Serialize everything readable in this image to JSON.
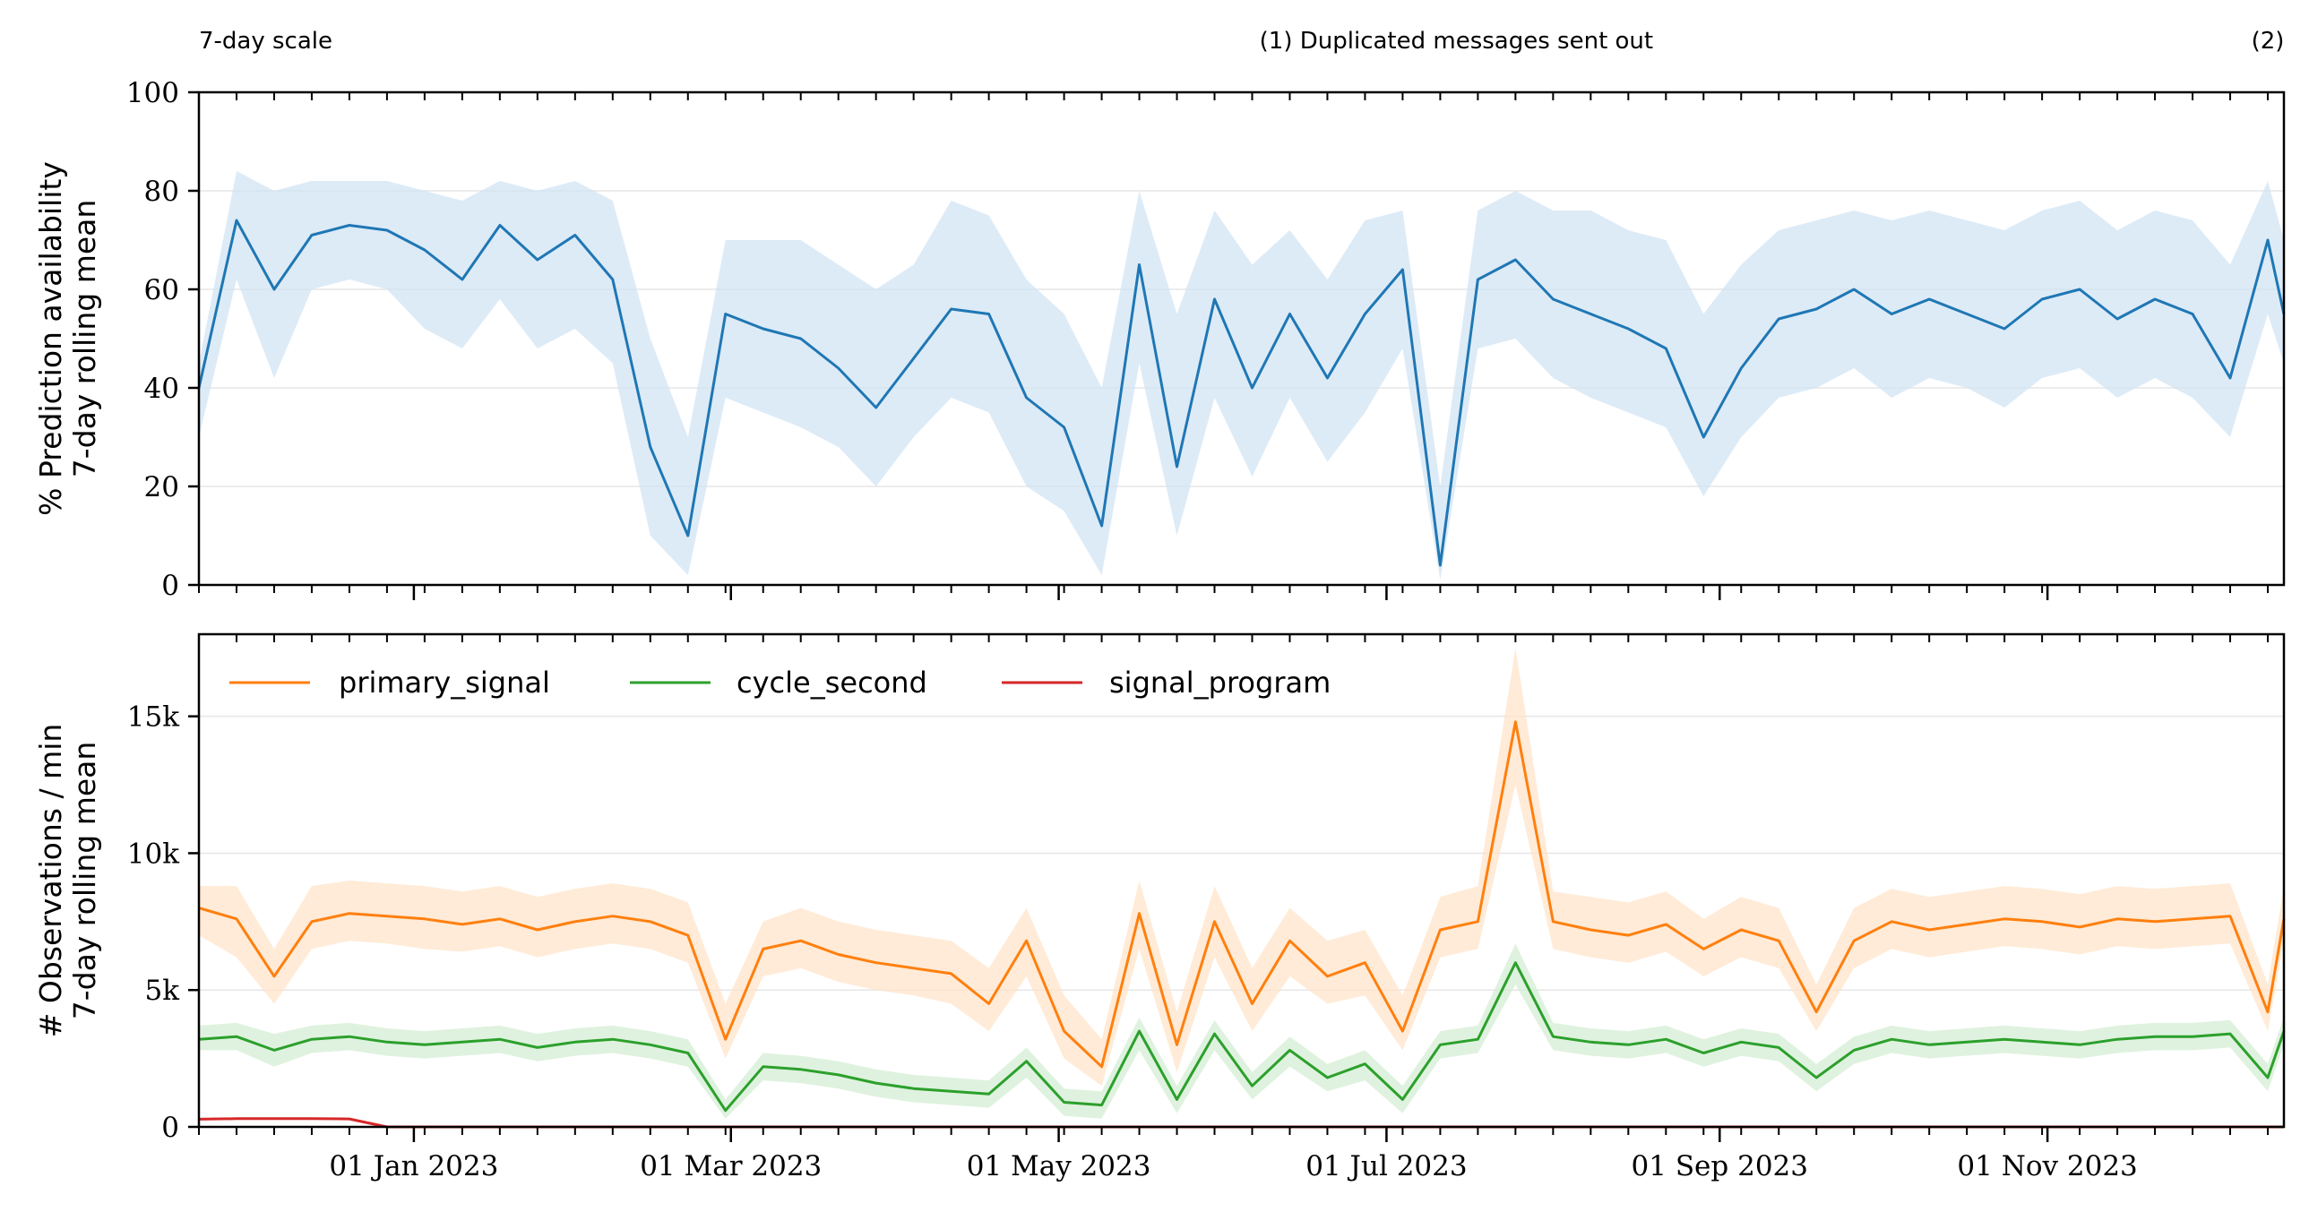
{
  "colors": {
    "availability": "#1f77b4",
    "availability_band": "#cfe3f3",
    "primary_signal": "#ff7f0e",
    "primary_signal_band": "#ffe2c6",
    "cycle_second": "#2ca02c",
    "cycle_second_band": "#d2ecd2",
    "signal_program": "#d62728",
    "grid": "#e6e6e6"
  },
  "chart_data": [
    {
      "type": "line",
      "ylabel_lines": [
        "% Prediction availability",
        "7-day rolling mean"
      ],
      "ylim": [
        0,
        100
      ],
      "yticks": [
        0,
        20,
        40,
        60,
        80,
        100
      ],
      "ytick_labels": [
        "0",
        "20",
        "40",
        "60",
        "80",
        "100"
      ],
      "grid": true,
      "annotations": [
        {
          "text": "7-day scale",
          "date": "2022-11-22"
        },
        {
          "text": "(1) Duplicated messages sent out",
          "date": "2023-07-14"
        },
        {
          "text": "(2)",
          "date": "2023-12-12"
        }
      ],
      "xlim": [
        "2022-11-22",
        "2023-12-15"
      ],
      "x": [
        "2022-11-22",
        "2022-11-29",
        "2022-12-06",
        "2022-12-13",
        "2022-12-20",
        "2022-12-27",
        "2023-01-03",
        "2023-01-10",
        "2023-01-17",
        "2023-01-24",
        "2023-01-31",
        "2023-02-07",
        "2023-02-14",
        "2023-02-21",
        "2023-02-28",
        "2023-03-07",
        "2023-03-14",
        "2023-03-21",
        "2023-03-28",
        "2023-04-04",
        "2023-04-11",
        "2023-04-18",
        "2023-04-25",
        "2023-05-02",
        "2023-05-09",
        "2023-05-16",
        "2023-05-23",
        "2023-05-30",
        "2023-06-06",
        "2023-06-13",
        "2023-06-20",
        "2023-06-27",
        "2023-07-04",
        "2023-07-11",
        "2023-07-18",
        "2023-07-25",
        "2023-08-01",
        "2023-08-08",
        "2023-08-15",
        "2023-08-22",
        "2023-08-29",
        "2023-09-05",
        "2023-09-12",
        "2023-09-19",
        "2023-09-26",
        "2023-10-03",
        "2023-10-10",
        "2023-10-17",
        "2023-10-24",
        "2023-10-31",
        "2023-11-07",
        "2023-11-14",
        "2023-11-21",
        "2023-11-28",
        "2023-12-05",
        "2023-12-12",
        "2023-12-15"
      ],
      "series": [
        {
          "key": "availability",
          "values": [
            40,
            74,
            60,
            71,
            73,
            72,
            68,
            62,
            73,
            66,
            71,
            62,
            28,
            10,
            55,
            52,
            50,
            44,
            36,
            46,
            56,
            55,
            38,
            32,
            12,
            65,
            24,
            58,
            40,
            55,
            42,
            55,
            64,
            4,
            62,
            66,
            58,
            55,
            52,
            48,
            30,
            44,
            54,
            56,
            60,
            55,
            58,
            55,
            52,
            58,
            60,
            54,
            58,
            55,
            42,
            70,
            55
          ],
          "band_low": [
            30,
            62,
            42,
            60,
            62,
            60,
            52,
            48,
            58,
            48,
            52,
            45,
            10,
            2,
            38,
            35,
            32,
            28,
            20,
            30,
            38,
            35,
            20,
            15,
            2,
            45,
            10,
            38,
            22,
            38,
            25,
            35,
            48,
            1,
            48,
            50,
            42,
            38,
            35,
            32,
            18,
            30,
            38,
            40,
            44,
            38,
            42,
            40,
            36,
            42,
            44,
            38,
            42,
            38,
            30,
            55,
            45
          ],
          "band_high": [
            45,
            84,
            80,
            82,
            82,
            82,
            80,
            78,
            82,
            80,
            82,
            78,
            50,
            30,
            70,
            70,
            70,
            65,
            60,
            65,
            78,
            75,
            62,
            55,
            40,
            80,
            55,
            76,
            65,
            72,
            62,
            74,
            76,
            20,
            76,
            80,
            76,
            76,
            72,
            70,
            55,
            65,
            72,
            74,
            76,
            74,
            76,
            74,
            72,
            76,
            78,
            72,
            76,
            74,
            65,
            82,
            70
          ]
        }
      ]
    },
    {
      "type": "line",
      "ylabel_lines": [
        "# Observations / min",
        "7-day rolling mean"
      ],
      "ylim": [
        0,
        18000
      ],
      "yticks": [
        0,
        5000,
        10000,
        15000
      ],
      "ytick_labels": [
        "0",
        "5k",
        "10k",
        "15k"
      ],
      "grid": true,
      "legend": {
        "placement": "top-left",
        "columns": 3
      },
      "xlim": [
        "2022-11-22",
        "2023-12-15"
      ],
      "xtick_labels": [
        "01 Jan 2023",
        "01 Mar 2023",
        "01 May 2023",
        "01 Jul 2023",
        "01 Sep 2023",
        "01 Nov 2023"
      ],
      "xtick_dates": [
        "2023-01-01",
        "2023-03-01",
        "2023-05-01",
        "2023-07-01",
        "2023-09-01",
        "2023-11-01"
      ],
      "x": [
        "2022-11-22",
        "2022-11-29",
        "2022-12-06",
        "2022-12-13",
        "2022-12-20",
        "2022-12-27",
        "2023-01-03",
        "2023-01-10",
        "2023-01-17",
        "2023-01-24",
        "2023-01-31",
        "2023-02-07",
        "2023-02-14",
        "2023-02-21",
        "2023-02-28",
        "2023-03-07",
        "2023-03-14",
        "2023-03-21",
        "2023-03-28",
        "2023-04-04",
        "2023-04-11",
        "2023-04-18",
        "2023-04-25",
        "2023-05-02",
        "2023-05-09",
        "2023-05-16",
        "2023-05-23",
        "2023-05-30",
        "2023-06-06",
        "2023-06-13",
        "2023-06-20",
        "2023-06-27",
        "2023-07-04",
        "2023-07-11",
        "2023-07-18",
        "2023-07-25",
        "2023-08-01",
        "2023-08-08",
        "2023-08-15",
        "2023-08-22",
        "2023-08-29",
        "2023-09-05",
        "2023-09-12",
        "2023-09-19",
        "2023-09-26",
        "2023-10-03",
        "2023-10-10",
        "2023-10-17",
        "2023-10-24",
        "2023-10-31",
        "2023-11-07",
        "2023-11-14",
        "2023-11-21",
        "2023-11-28",
        "2023-12-05",
        "2023-12-12",
        "2023-12-15"
      ],
      "series": [
        {
          "key": "primary_signal",
          "name": "primary_signal",
          "values": [
            8000,
            7600,
            5500,
            7500,
            7800,
            7700,
            7600,
            7400,
            7600,
            7200,
            7500,
            7700,
            7500,
            7000,
            3200,
            6500,
            6800,
            6300,
            6000,
            5800,
            5600,
            4500,
            6800,
            3500,
            2200,
            7800,
            3000,
            7500,
            4500,
            6800,
            5500,
            6000,
            3500,
            7200,
            7500,
            14800,
            7500,
            7200,
            7000,
            7400,
            6500,
            7200,
            6800,
            4200,
            6800,
            7500,
            7200,
            7400,
            7600,
            7500,
            7300,
            7600,
            7500,
            7600,
            7700,
            4200,
            7600
          ],
          "band_low": [
            7000,
            6200,
            4500,
            6500,
            6800,
            6700,
            6500,
            6400,
            6600,
            6200,
            6500,
            6700,
            6500,
            6000,
            2500,
            5500,
            5800,
            5300,
            5000,
            4800,
            4500,
            3500,
            5500,
            2500,
            1500,
            6500,
            2000,
            6200,
            3500,
            5500,
            4500,
            4800,
            2800,
            6200,
            6500,
            12500,
            6500,
            6200,
            6000,
            6400,
            5500,
            6200,
            5800,
            3500,
            5800,
            6500,
            6200,
            6400,
            6600,
            6500,
            6300,
            6600,
            6500,
            6600,
            6700,
            3500,
            6800
          ],
          "band_high": [
            8800,
            8800,
            6500,
            8800,
            9000,
            8900,
            8800,
            8600,
            8800,
            8400,
            8700,
            8900,
            8700,
            8200,
            4500,
            7500,
            8000,
            7500,
            7200,
            7000,
            6800,
            5800,
            8000,
            4800,
            3200,
            9000,
            4200,
            8800,
            5800,
            8000,
            6800,
            7200,
            4800,
            8400,
            8800,
            17500,
            8600,
            8400,
            8200,
            8600,
            7600,
            8400,
            8000,
            5200,
            8000,
            8700,
            8400,
            8600,
            8800,
            8700,
            8500,
            8800,
            8700,
            8800,
            8900,
            5200,
            8800
          ],
          "band_key": "primary_signal_band"
        },
        {
          "key": "cycle_second",
          "name": "cycle_second",
          "values": [
            3200,
            3300,
            2800,
            3200,
            3300,
            3100,
            3000,
            3100,
            3200,
            2900,
            3100,
            3200,
            3000,
            2700,
            600,
            2200,
            2100,
            1900,
            1600,
            1400,
            1300,
            1200,
            2400,
            900,
            800,
            3500,
            1000,
            3400,
            1500,
            2800,
            1800,
            2300,
            1000,
            3000,
            3200,
            6000,
            3300,
            3100,
            3000,
            3200,
            2700,
            3100,
            2900,
            1800,
            2800,
            3200,
            3000,
            3100,
            3200,
            3100,
            3000,
            3200,
            3300,
            3300,
            3400,
            1800,
            3500
          ],
          "band_low": [
            2800,
            2800,
            2200,
            2700,
            2800,
            2600,
            2500,
            2600,
            2700,
            2400,
            2600,
            2700,
            2500,
            2200,
            300,
            1700,
            1600,
            1400,
            1100,
            900,
            800,
            700,
            1800,
            400,
            300,
            2800,
            500,
            2800,
            1000,
            2200,
            1300,
            1700,
            500,
            2500,
            2700,
            5200,
            2800,
            2600,
            2500,
            2700,
            2200,
            2600,
            2400,
            1300,
            2300,
            2700,
            2500,
            2600,
            2700,
            2600,
            2500,
            2700,
            2800,
            2800,
            2900,
            1300,
            3000
          ],
          "band_high": [
            3700,
            3800,
            3400,
            3700,
            3800,
            3600,
            3500,
            3600,
            3700,
            3400,
            3600,
            3700,
            3500,
            3200,
            1000,
            2700,
            2600,
            2400,
            2100,
            1900,
            1800,
            1700,
            2900,
            1400,
            1300,
            4000,
            1500,
            3900,
            2000,
            3300,
            2300,
            2800,
            1500,
            3500,
            3700,
            6700,
            3800,
            3600,
            3500,
            3700,
            3200,
            3600,
            3400,
            2300,
            3300,
            3700,
            3500,
            3600,
            3700,
            3600,
            3500,
            3700,
            3800,
            3800,
            3900,
            2300,
            4000
          ],
          "band_key": "cycle_second_band"
        },
        {
          "key": "signal_program",
          "name": "signal_program",
          "values": [
            280,
            300,
            300,
            300,
            290,
            0,
            0,
            0,
            0,
            0,
            0,
            0,
            0,
            0,
            0,
            0,
            0,
            0,
            0,
            0,
            0,
            0,
            0,
            0,
            0,
            0,
            0,
            0,
            0,
            0,
            0,
            0,
            0,
            0,
            0,
            0,
            0,
            0,
            0,
            0,
            0,
            0,
            0,
            0,
            0,
            0,
            0,
            0,
            0,
            0,
            0,
            0,
            0,
            0,
            0,
            0,
            0
          ]
        }
      ]
    }
  ]
}
